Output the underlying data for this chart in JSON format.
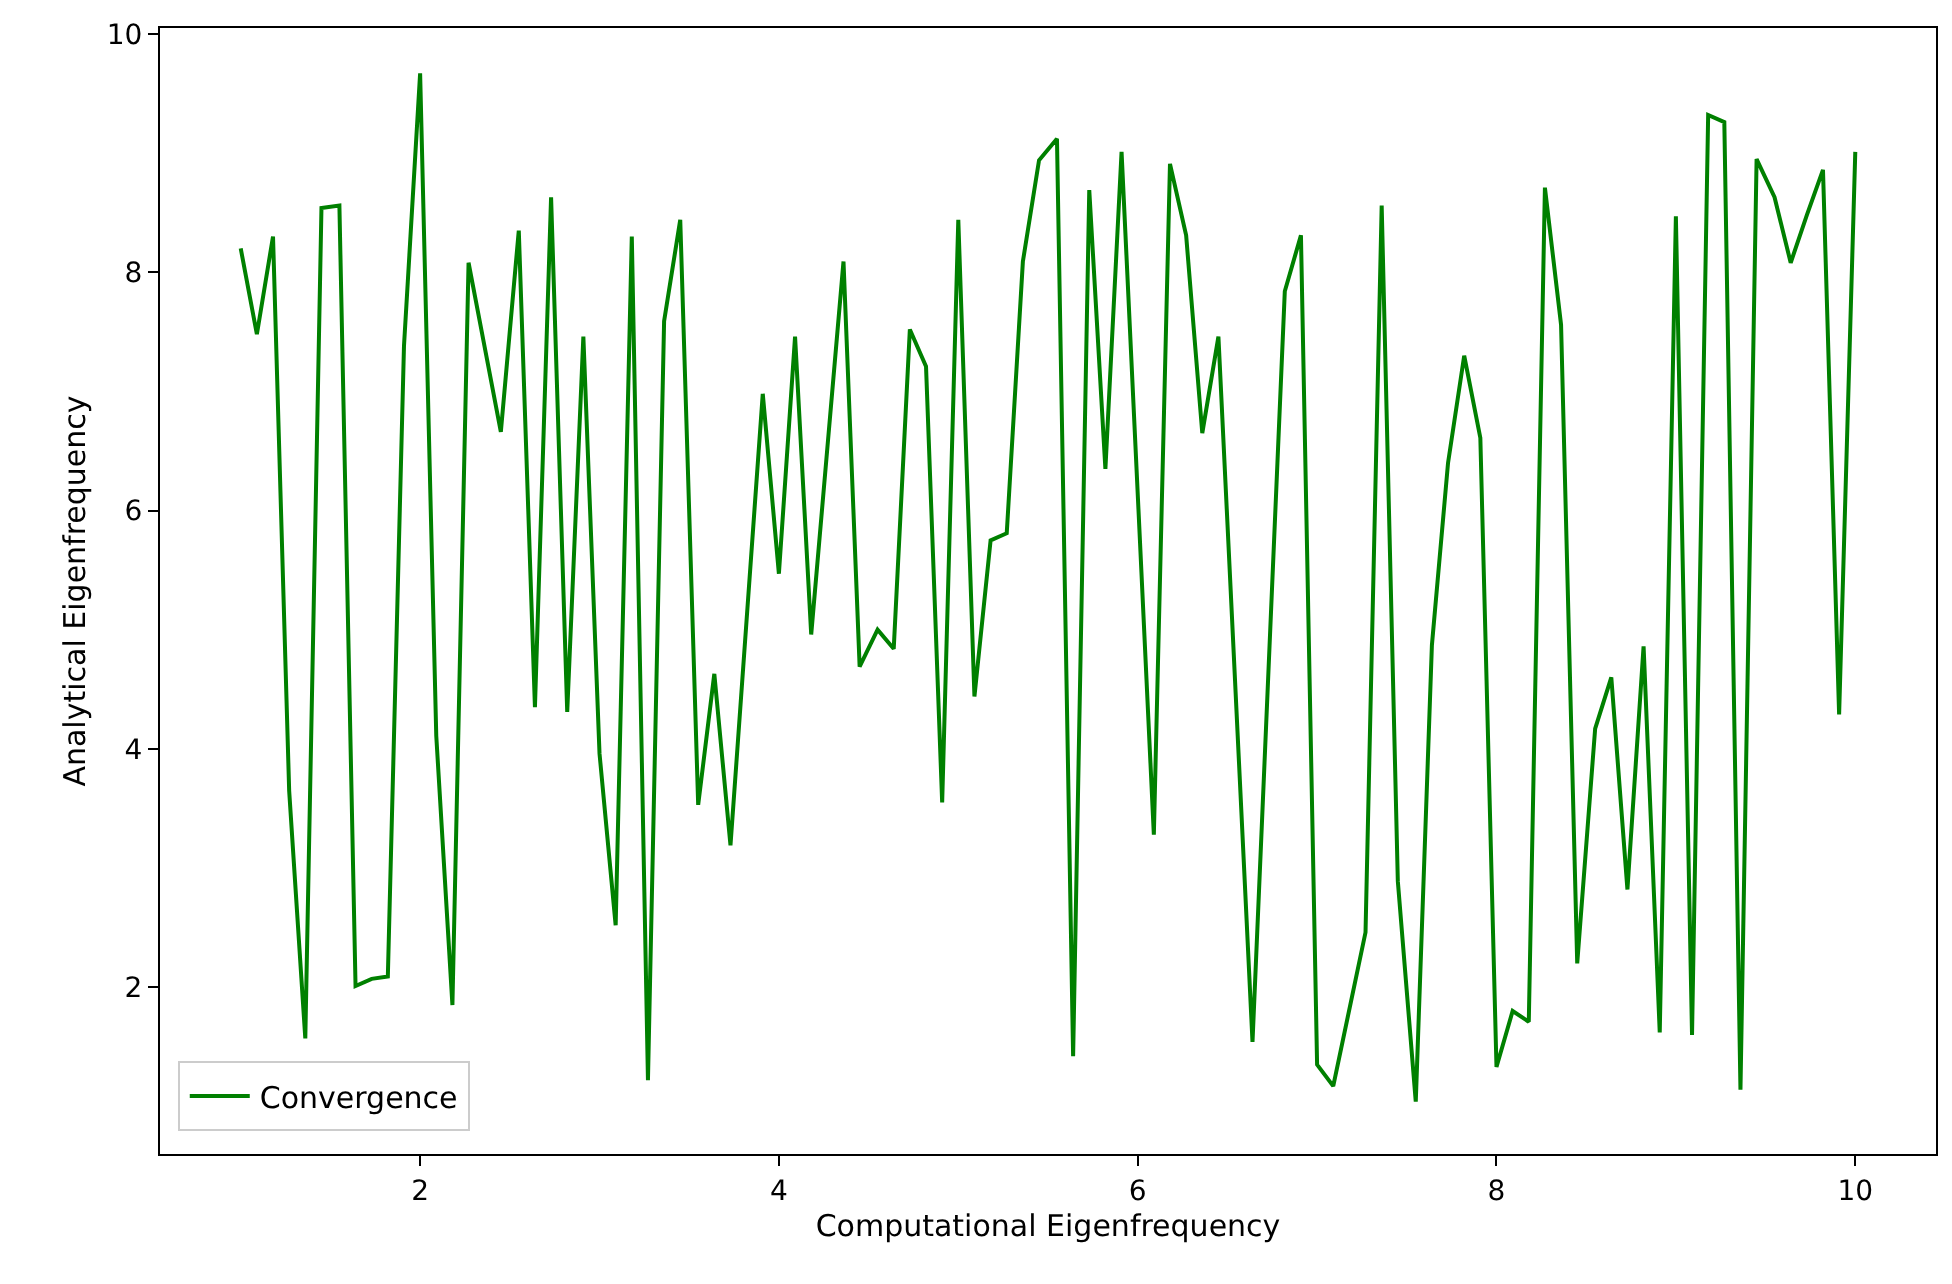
{
  "chart_data": {
    "type": "line",
    "xlabel": "Computational Eigenfrequency",
    "ylabel": "Analytical Eigenfrequency",
    "xlim": [
      0.55,
      10.45
    ],
    "ylim": [
      0.6,
      10.05
    ],
    "xticks": [
      2,
      4,
      6,
      8,
      10
    ],
    "yticks": [
      2,
      4,
      6,
      8,
      10
    ],
    "legend": "bottom left",
    "series": [
      {
        "name": "Convergence",
        "color": "#008000",
        "x": [
          1.0,
          1.09,
          1.18,
          1.27,
          1.36,
          1.45,
          1.55,
          1.64,
          1.73,
          1.82,
          1.91,
          2.0,
          2.09,
          2.18,
          2.27,
          2.45,
          2.55,
          2.64,
          2.73,
          2.82,
          2.91,
          3.0,
          3.09,
          3.18,
          3.27,
          3.36,
          3.45,
          3.55,
          3.64,
          3.73,
          3.91,
          4.0,
          4.09,
          4.18,
          4.36,
          4.45,
          4.55,
          4.64,
          4.73,
          4.82,
          4.91,
          5.0,
          5.09,
          5.18,
          5.27,
          5.36,
          5.45,
          5.55,
          5.64,
          5.73,
          5.82,
          5.91,
          6.09,
          6.18,
          6.27,
          6.36,
          6.45,
          6.64,
          6.82,
          6.91,
          7.0,
          7.09,
          7.27,
          7.36,
          7.45,
          7.55,
          7.64,
          7.73,
          7.82,
          7.91,
          8.0,
          8.09,
          8.18,
          8.27,
          8.36,
          8.45,
          8.55,
          8.64,
          8.73,
          8.82,
          8.91,
          9.0,
          9.09,
          9.18,
          9.27,
          9.36,
          9.45,
          9.55,
          9.64,
          9.73,
          9.82,
          9.91,
          10.0
        ],
        "values": [
          8.2,
          7.48,
          8.3,
          3.65,
          1.57,
          8.54,
          8.56,
          2.01,
          2.07,
          2.09,
          7.38,
          9.67,
          4.11,
          1.85,
          8.08,
          6.66,
          8.35,
          4.35,
          8.63,
          4.31,
          7.46,
          3.96,
          2.52,
          8.3,
          1.22,
          7.59,
          8.44,
          3.53,
          4.63,
          3.19,
          6.98,
          5.47,
          7.46,
          4.96,
          8.09,
          4.69,
          5.0,
          4.84,
          7.52,
          7.21,
          3.55,
          8.44,
          4.44,
          5.75,
          5.81,
          8.09,
          8.94,
          9.12,
          1.42,
          8.69,
          6.35,
          9.01,
          3.28,
          8.91,
          8.31,
          6.65,
          7.46,
          1.54,
          7.84,
          8.31,
          1.35,
          1.17,
          2.46,
          8.56,
          2.89,
          1.04,
          4.87,
          6.4,
          7.3,
          6.61,
          1.33,
          1.8,
          1.71,
          8.71,
          7.56,
          2.2,
          4.17,
          4.6,
          2.82,
          4.86,
          1.62,
          8.47,
          1.6,
          9.32,
          9.26,
          1.14,
          8.95,
          8.63,
          8.08,
          8.48,
          8.86,
          4.29,
          9.01
        ]
      }
    ]
  }
}
